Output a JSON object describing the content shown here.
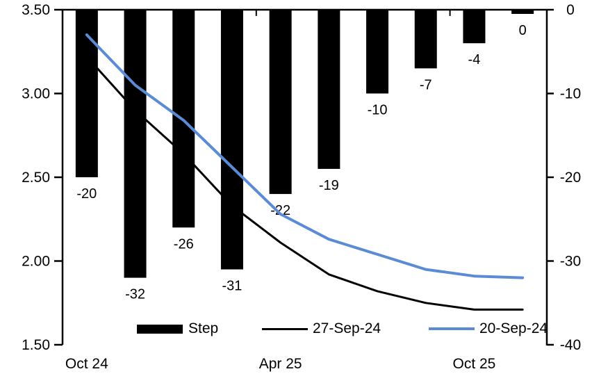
{
  "chart_data": {
    "type": "combo-bar-line",
    "title": "",
    "x_tick_labels": [
      {
        "label": "Oct 24",
        "category": 0
      },
      {
        "label": "Apr 25",
        "category": 4
      },
      {
        "label": "Oct 25",
        "category": 8
      }
    ],
    "bar_series": {
      "name": "Step",
      "axis": "right",
      "color": "#000000",
      "values": [
        -20,
        -32,
        -26,
        -31,
        -22,
        -19,
        -10,
        -7,
        -4,
        0
      ],
      "data_labels": [
        "-20",
        "-32",
        "-26",
        "-31",
        "-22",
        "-19",
        "-10",
        "-7",
        "-4",
        "0"
      ]
    },
    "line_series": [
      {
        "name": "27-Sep-24",
        "axis": "left",
        "color": "#000000",
        "width": 3,
        "values": [
          3.22,
          2.9,
          2.64,
          2.33,
          2.11,
          1.92,
          1.82,
          1.75,
          1.71,
          1.71
        ]
      },
      {
        "name": "20-Sep-24",
        "axis": "left",
        "color": "#5B8BD5",
        "width": 4,
        "values": [
          3.35,
          3.05,
          2.84,
          2.56,
          2.28,
          2.13,
          2.04,
          1.95,
          1.91,
          1.9
        ]
      }
    ],
    "left_axis": {
      "tick_labels": [
        "3.50",
        "3.00",
        "2.50",
        "2.00",
        "1.50"
      ],
      "max": 3.5,
      "min": 1.5
    },
    "right_axis": {
      "tick_labels": [
        "0",
        "-10",
        "-20",
        "-30",
        "-40"
      ],
      "max": 0,
      "min": -40
    },
    "legend": [
      {
        "label": "Step",
        "swatch": "bar",
        "color": "#000000"
      },
      {
        "label": "27-Sep-24",
        "swatch": "line",
        "color": "#000000"
      },
      {
        "label": "20-Sep-24",
        "swatch": "line",
        "color": "#5B8BD5"
      }
    ],
    "grid": false,
    "legend_position": "bottom-center"
  }
}
